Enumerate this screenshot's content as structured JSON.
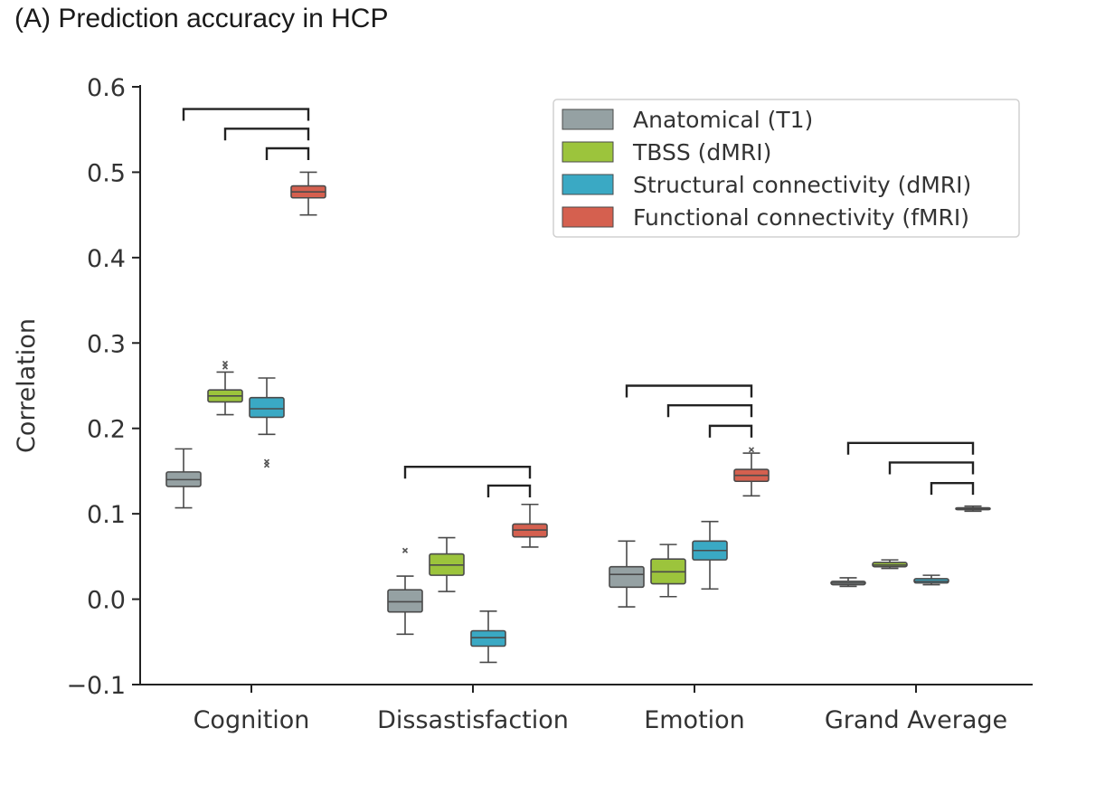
{
  "title": "(A) Prediction accuracy in HCP",
  "chart_data": {
    "type": "box",
    "ylabel": "Correlation",
    "xlabel": "",
    "ylim": [
      -0.1,
      0.6
    ],
    "yticks": [
      -0.1,
      0.0,
      0.1,
      0.2,
      0.3,
      0.4,
      0.5,
      0.6
    ],
    "ytick_labels": [
      "−0.1",
      "0.0",
      "0.1",
      "0.2",
      "0.3",
      "0.4",
      "0.5",
      "0.6"
    ],
    "categories": [
      "Cognition",
      "Dissastisfaction",
      "Emotion",
      "Grand Average"
    ],
    "legend_position": "top-right",
    "series": [
      {
        "name": "Anatomical (T1)",
        "color": "#95a1a3",
        "boxes": [
          {
            "whislo": 0.107,
            "q1": 0.132,
            "med": 0.14,
            "q3": 0.149,
            "whishi": 0.176,
            "fliers": []
          },
          {
            "whislo": -0.041,
            "q1": -0.015,
            "med": -0.003,
            "q3": 0.011,
            "whishi": 0.027,
            "fliers": [
              0.057
            ]
          },
          {
            "whislo": -0.009,
            "q1": 0.014,
            "med": 0.029,
            "q3": 0.038,
            "whishi": 0.068,
            "fliers": []
          },
          {
            "whislo": 0.015,
            "q1": 0.017,
            "med": 0.019,
            "q3": 0.021,
            "whishi": 0.025,
            "fliers": []
          }
        ]
      },
      {
        "name": "TBSS (dMRI)",
        "color": "#9cc43c",
        "boxes": [
          {
            "whislo": 0.216,
            "q1": 0.231,
            "med": 0.238,
            "q3": 0.245,
            "whishi": 0.266,
            "fliers": [
              0.272,
              0.276
            ]
          },
          {
            "whislo": 0.009,
            "q1": 0.028,
            "med": 0.04,
            "q3": 0.053,
            "whishi": 0.072,
            "fliers": []
          },
          {
            "whislo": 0.003,
            "q1": 0.018,
            "med": 0.032,
            "q3": 0.047,
            "whishi": 0.064,
            "fliers": []
          },
          {
            "whislo": 0.036,
            "q1": 0.038,
            "med": 0.04,
            "q3": 0.043,
            "whishi": 0.046,
            "fliers": []
          }
        ]
      },
      {
        "name": "Structural connectivity (dMRI)",
        "color": "#3aa9c4",
        "boxes": [
          {
            "whislo": 0.193,
            "q1": 0.213,
            "med": 0.223,
            "q3": 0.236,
            "whishi": 0.259,
            "fliers": [
              0.157,
              0.161
            ]
          },
          {
            "whislo": -0.074,
            "q1": -0.055,
            "med": -0.045,
            "q3": -0.037,
            "whishi": -0.014,
            "fliers": []
          },
          {
            "whislo": 0.012,
            "q1": 0.046,
            "med": 0.057,
            "q3": 0.068,
            "whishi": 0.091,
            "fliers": []
          },
          {
            "whislo": 0.017,
            "q1": 0.019,
            "med": 0.021,
            "q3": 0.024,
            "whishi": 0.028,
            "fliers": []
          }
        ]
      },
      {
        "name": "Functional connectivity (fMRI)",
        "color": "#d5604f",
        "boxes": [
          {
            "whislo": 0.45,
            "q1": 0.47,
            "med": 0.477,
            "q3": 0.484,
            "whishi": 0.5,
            "fliers": []
          },
          {
            "whislo": 0.061,
            "q1": 0.073,
            "med": 0.081,
            "q3": 0.088,
            "whishi": 0.111,
            "fliers": []
          },
          {
            "whislo": 0.121,
            "q1": 0.138,
            "med": 0.145,
            "q3": 0.152,
            "whishi": 0.171,
            "fliers": [
              0.175
            ]
          },
          {
            "whislo": 0.103,
            "q1": 0.105,
            "med": 0.106,
            "q3": 0.107,
            "whishi": 0.109,
            "fliers": []
          }
        ]
      }
    ],
    "significance_brackets": [
      {
        "category": 0,
        "from_series": 0,
        "to_series": 3,
        "y": 0.574
      },
      {
        "category": 0,
        "from_series": 1,
        "to_series": 3,
        "y": 0.551
      },
      {
        "category": 0,
        "from_series": 2,
        "to_series": 3,
        "y": 0.528
      },
      {
        "category": 1,
        "from_series": 0,
        "to_series": 3,
        "y": 0.155
      },
      {
        "category": 1,
        "from_series": 2,
        "to_series": 3,
        "y": 0.133
      },
      {
        "category": 2,
        "from_series": 0,
        "to_series": 3,
        "y": 0.25
      },
      {
        "category": 2,
        "from_series": 1,
        "to_series": 3,
        "y": 0.227
      },
      {
        "category": 2,
        "from_series": 2,
        "to_series": 3,
        "y": 0.203
      },
      {
        "category": 3,
        "from_series": 0,
        "to_series": 3,
        "y": 0.183
      },
      {
        "category": 3,
        "from_series": 1,
        "to_series": 3,
        "y": 0.16
      },
      {
        "category": 3,
        "from_series": 2,
        "to_series": 3,
        "y": 0.136
      }
    ]
  }
}
